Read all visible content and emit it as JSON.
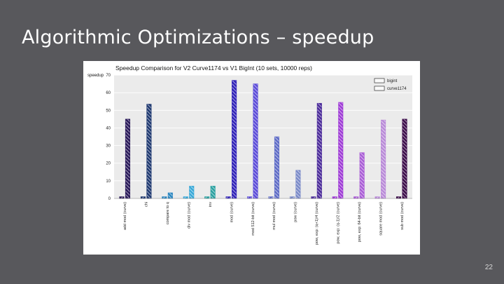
{
  "slide": {
    "title": "Algorithmic Optimizations – speedup",
    "page_number": "22"
  },
  "colors": {
    "background": "#58585c",
    "plot_background": "#ebebeb",
    "grid": "#ffffff",
    "category_colors": [
      "#2a1a5a",
      "#1e3870",
      "#2a86c0",
      "#38a8d8",
      "#2aa0a0",
      "#3022b8",
      "#5a4ad8",
      "#5f6cc6",
      "#7a8ac8",
      "#4a2a9a",
      "#9e3ad6",
      "#a95cd6",
      "#b98ad8",
      "#3a0a48"
    ]
  },
  "chart_data": {
    "type": "bar",
    "title": "Speedup Comparison for V2 Curve1174 vs V1 BigInt (10 sets, 10000 reps)",
    "ylabel": "speedup",
    "xlabel": "",
    "ylim": [
      0,
      70
    ],
    "yticks": [
      0,
      10,
      20,
      30,
      40,
      50,
      60,
      70
    ],
    "grid": true,
    "legend_position": "top-right",
    "categories": [
      "add mod (curve)",
      "chi",
      "compare to q",
      "div mod (curve)",
      "inv",
      "mod (curve)",
      "mod 512-bit (curve)",
      "mul mod (curve)",
      "pow (curve)",
      "pow, exp: (q+1)/4 (curve)",
      "pow, exp: (q-1)/2 (curve)",
      "pow, exp: 64-bit (curve)",
      "square mod (curve)",
      "sub mod (curve)"
    ],
    "series": [
      {
        "name": "bigint",
        "values": [
          1,
          1,
          1,
          1,
          1,
          1,
          1,
          1,
          1,
          1,
          1,
          1,
          1,
          1
        ]
      },
      {
        "name": "curve1174",
        "values": [
          45,
          53.5,
          3.2,
          7,
          7,
          67,
          65,
          35,
          16,
          54,
          54.5,
          26,
          44.5,
          45
        ]
      }
    ]
  }
}
